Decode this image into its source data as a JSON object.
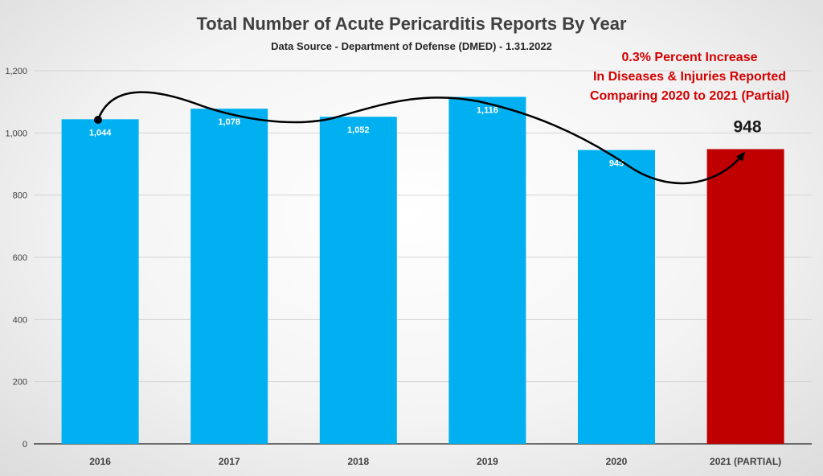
{
  "chart_data": {
    "type": "bar",
    "title": "Total Number of Acute Pericarditis Reports By Year",
    "subtitle": "Data Source - Department of Defense (DMED) - 1.31.2022",
    "categories": [
      "2016",
      "2017",
      "2018",
      "2019",
      "2020",
      "2021 (PARTIAL)"
    ],
    "values": [
      1044,
      1078,
      1052,
      1116,
      945,
      948
    ],
    "data_labels": [
      "1,044",
      "1,078",
      "1,052",
      "1,116",
      "945",
      "948"
    ],
    "ylim": [
      0,
      1200
    ],
    "yticks": [
      "0",
      "200",
      "400",
      "600",
      "800",
      "1,000",
      "1,200"
    ],
    "grid": true,
    "legend": "none",
    "colors": {
      "bar": "#00b0f0",
      "highlight_bar": "#c00000",
      "annotation": "#d40000",
      "trend_curve": "#000000"
    },
    "annotation_lines": [
      "0.3% Percent Increase",
      "In Diseases & Injuries Reported",
      "Comparing 2020 to 2021 (Partial)"
    ]
  }
}
